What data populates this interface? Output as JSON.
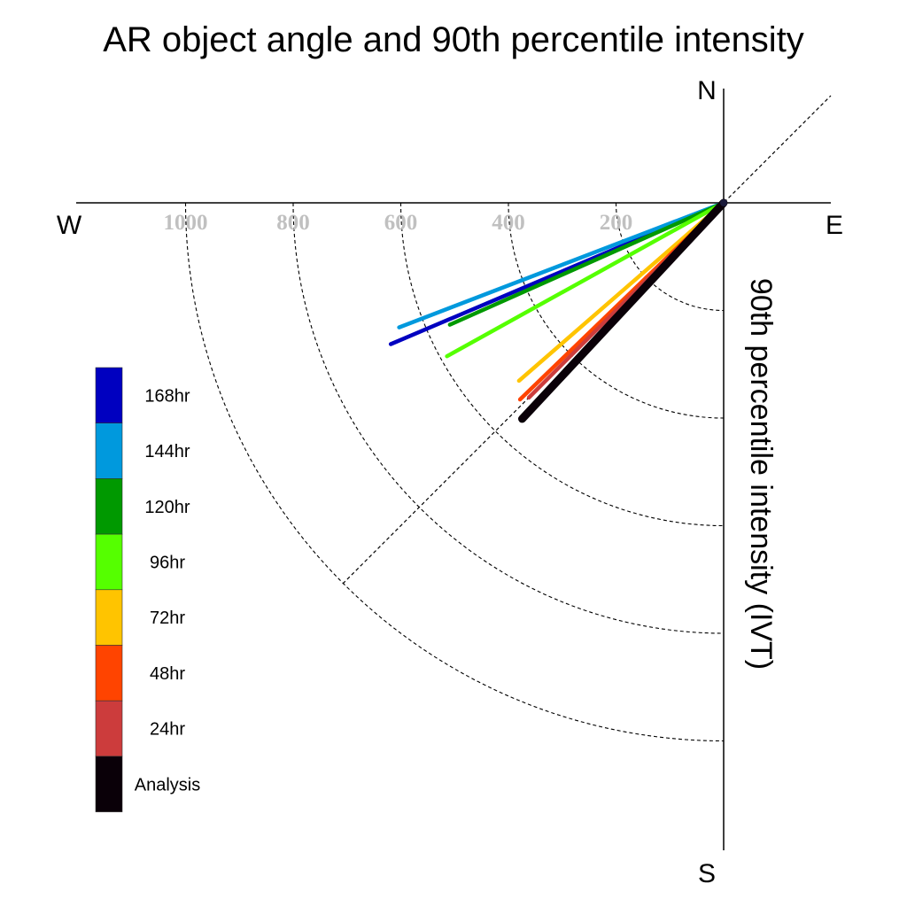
{
  "chart_data": {
    "type": "polar-vector",
    "title": "AR object angle and 90th percentile intensity",
    "ylabel": "90th percentile intensity (IVT)",
    "compass": {
      "north": "N",
      "south": "S",
      "east": "E",
      "west": "W"
    },
    "radial_ticks": [
      "200",
      "400",
      "600",
      "800",
      "1000"
    ],
    "radial_tick_values": [
      200,
      400,
      600,
      800,
      1000
    ],
    "series": [
      {
        "name": "168hr",
        "color": "#0000c0",
        "angle_deg": 247,
        "intensity": 672
      },
      {
        "name": "144hr",
        "color": "#0099dd",
        "angle_deg": 249,
        "intensity": 646
      },
      {
        "name": "120hr",
        "color": "#009900",
        "angle_deg": 246,
        "intensity": 557
      },
      {
        "name": "96hr",
        "color": "#55ff00",
        "angle_deg": 241,
        "intensity": 588
      },
      {
        "name": "72hr",
        "color": "#ffc400",
        "angle_deg": 229,
        "intensity": 504
      },
      {
        "name": "48hr",
        "color": "#ff4400",
        "angle_deg": 226,
        "intensity": 526
      },
      {
        "name": "24hr",
        "color": "#cc3c3c",
        "angle_deg": 225,
        "intensity": 512
      },
      {
        "name": "Analysis",
        "color": "#0a0008",
        "angle_deg": 223,
        "intensity": 549
      }
    ],
    "legend_position": "left"
  }
}
